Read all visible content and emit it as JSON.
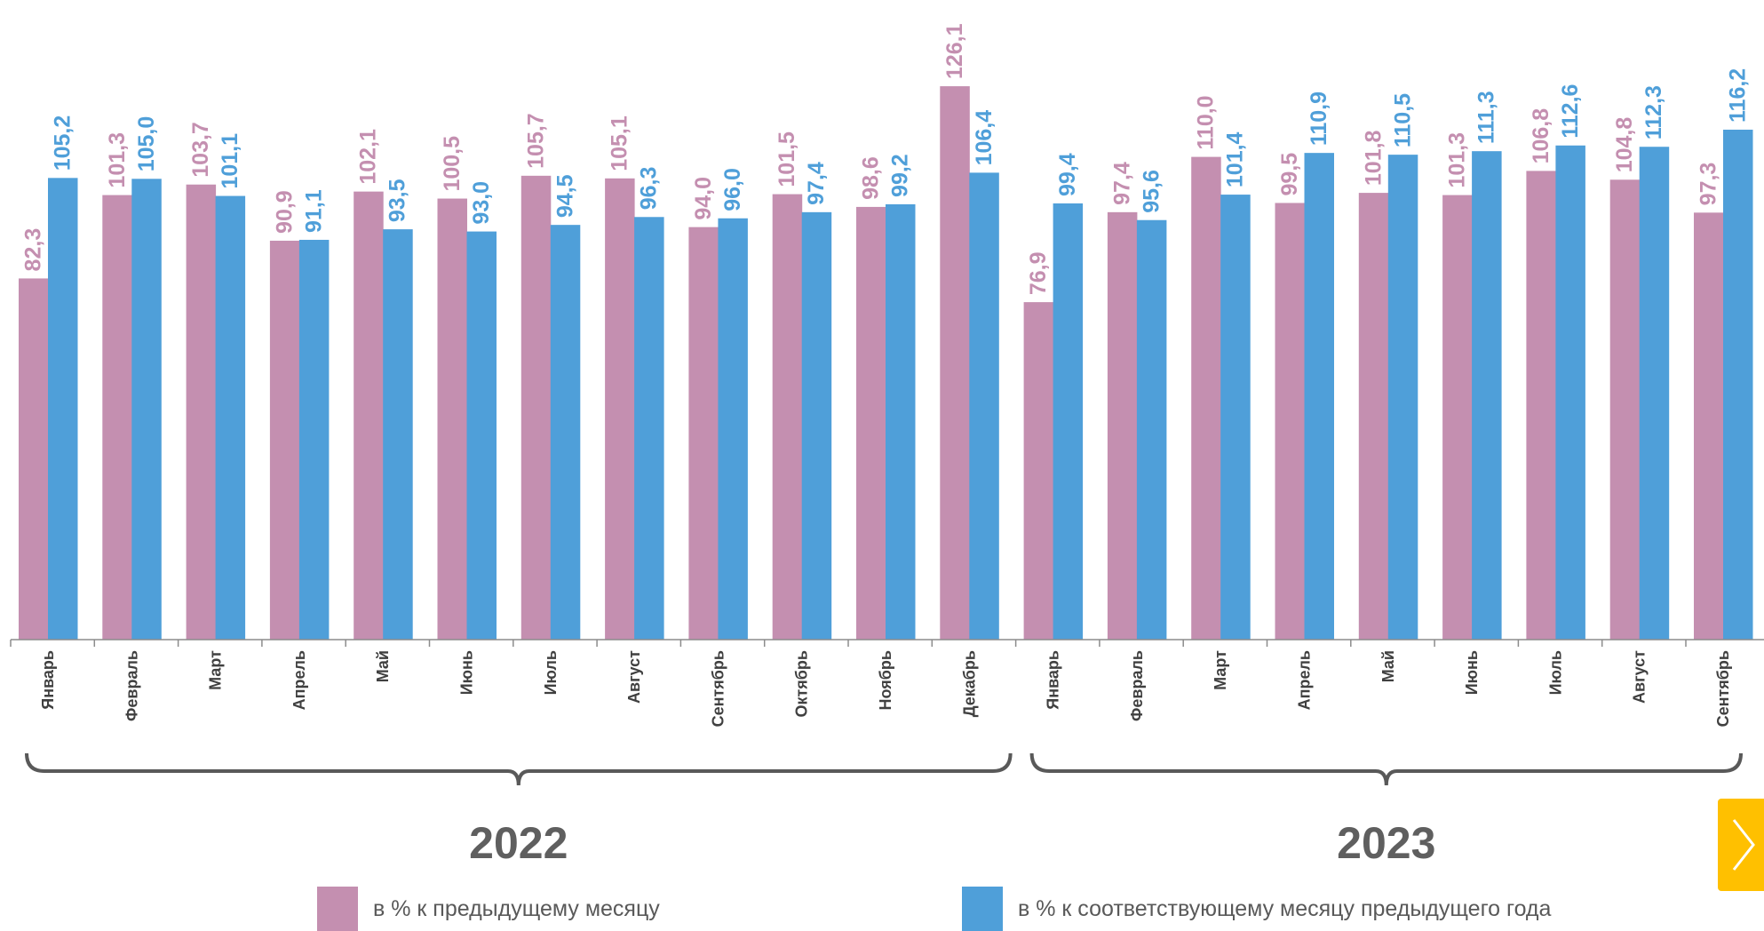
{
  "chart_data": {
    "type": "bar",
    "ylim": [
      0,
      140
    ],
    "categories": [
      "Январь",
      "Февраль",
      "Март",
      "Апрель",
      "Май",
      "Июнь",
      "Июль",
      "Август",
      "Сентябрь",
      "Октябрь",
      "Ноябрь",
      "Декабрь",
      "Январь",
      "Февраль",
      "Март",
      "Апрель",
      "Май",
      "Июнь",
      "Июль",
      "Август",
      "Сентябрь"
    ],
    "series": [
      {
        "name": "в % к предыдущему месяцу",
        "color": "#c48fb0",
        "values": [
          82.3,
          101.3,
          103.7,
          90.9,
          102.1,
          100.5,
          105.7,
          105.1,
          94.0,
          101.5,
          98.6,
          126.1,
          76.9,
          97.4,
          110.0,
          99.5,
          101.8,
          101.3,
          106.8,
          104.8,
          97.3
        ],
        "labels": [
          "82,3",
          "101,3",
          "103,7",
          "90,9",
          "102,1",
          "100,5",
          "105,7",
          "105,1",
          "94,0",
          "101,5",
          "98,6",
          "126,1",
          "76,9",
          "97,4",
          "110,0",
          "99,5",
          "101,8",
          "101,3",
          "106,8",
          "104,8",
          "97,3"
        ]
      },
      {
        "name": "в % к соответствующему месяцу предыдущего года",
        "color": "#4f9fd9",
        "values": [
          105.2,
          105.0,
          101.1,
          91.1,
          93.5,
          93.0,
          94.5,
          96.3,
          96.0,
          97.4,
          99.2,
          106.4,
          99.4,
          95.6,
          101.4,
          110.9,
          110.5,
          111.3,
          112.6,
          112.3,
          116.2
        ],
        "labels": [
          "105,2",
          "105,0",
          "101,1",
          "91,1",
          "93,5",
          "93,0",
          "94,5",
          "96,3",
          "96,0",
          "97,4",
          "99,2",
          "106,4",
          "99,4",
          "95,6",
          "101,4",
          "110,9",
          "110,5",
          "111,3",
          "112,6",
          "112,3",
          "116,2"
        ]
      }
    ],
    "groups": [
      {
        "label": "2022",
        "from": 0,
        "to": 11
      },
      {
        "label": "2023",
        "from": 12,
        "to": 20
      }
    ],
    "legend_position": "bottom",
    "grid": false
  },
  "legend": {
    "items": [
      {
        "label": "в % к предыдущему месяцу",
        "color": "#c48fb0"
      },
      {
        "label": "в % к соответствующему месяцу предыдущего года",
        "color": "#4f9fd9"
      }
    ]
  },
  "next_button": {
    "icon": "chevron-right-icon",
    "color": "#ffc000"
  }
}
